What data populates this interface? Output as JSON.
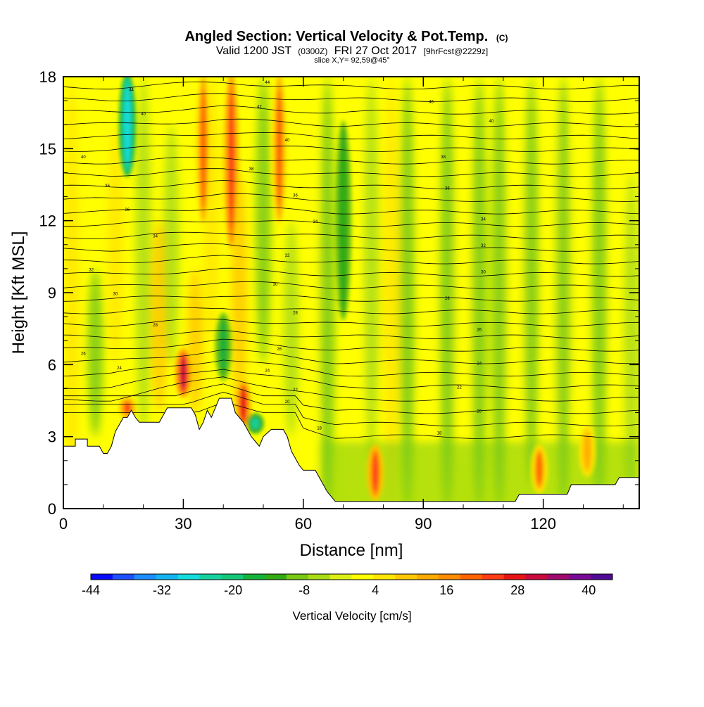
{
  "chart_data": {
    "type": "heatmap",
    "title": "Angled Section: Vertical Velocity & Pot.Temp.",
    "title_units": "(C)",
    "subtitle_parts": [
      {
        "text": "Valid 1200 JST",
        "small": false
      },
      {
        "text": "(0300Z)",
        "small": true
      },
      {
        "text": "FRI 27 Oct 2017",
        "small": false
      },
      {
        "text": "[9hrFcst@2229z]",
        "small": true
      }
    ],
    "slice_label": "slice X,Y= 92,59@45°",
    "xlabel": "Distance [nm]",
    "ylabel": "Height [Kft MSL]",
    "xlim": [
      0,
      144
    ],
    "ylim": [
      0,
      18
    ],
    "x_ticks": [
      "0",
      "30",
      "60",
      "90",
      "120"
    ],
    "y_ticks": [
      "0",
      "3",
      "6",
      "9",
      "12",
      "15",
      "18"
    ],
    "colorbar": {
      "label": "Vertical Velocity [cm/s]",
      "min": -44,
      "max": 44,
      "step": 4,
      "tick_labels": [
        "-44",
        "-32",
        "-20",
        "-8",
        "4",
        "16",
        "28",
        "40"
      ],
      "colors": [
        "#0a0aff",
        "#1e50ff",
        "#1e8cff",
        "#14b4f0",
        "#14dcdc",
        "#14d2a0",
        "#14c878",
        "#14b43c",
        "#32aa14",
        "#78c814",
        "#aadc14",
        "#dcf014",
        "#ffff00",
        "#ffe600",
        "#ffc800",
        "#ffaa00",
        "#ff8c00",
        "#ff6400",
        "#ff3c14",
        "#e61414",
        "#c80a3c",
        "#a00a6e",
        "#780a96",
        "#500a96"
      ]
    },
    "terrain_kft": [
      {
        "x": 0,
        "z": 2.6
      },
      {
        "x": 3,
        "z": 2.6
      },
      {
        "x": 3,
        "z": 2.9
      },
      {
        "x": 6,
        "z": 2.9
      },
      {
        "x": 6,
        "z": 2.6
      },
      {
        "x": 9,
        "z": 2.6
      },
      {
        "x": 10,
        "z": 2.3
      },
      {
        "x": 11,
        "z": 2.3
      },
      {
        "x": 12,
        "z": 2.6
      },
      {
        "x": 13,
        "z": 3.2
      },
      {
        "x": 14,
        "z": 3.5
      },
      {
        "x": 15,
        "z": 3.8
      },
      {
        "x": 16,
        "z": 3.8
      },
      {
        "x": 17,
        "z": 4.1
      },
      {
        "x": 18,
        "z": 3.8
      },
      {
        "x": 19,
        "z": 3.6
      },
      {
        "x": 24,
        "z": 3.6
      },
      {
        "x": 25,
        "z": 3.9
      },
      {
        "x": 26,
        "z": 4.2
      },
      {
        "x": 32,
        "z": 4.2
      },
      {
        "x": 33,
        "z": 3.9
      },
      {
        "x": 34,
        "z": 3.3
      },
      {
        "x": 35,
        "z": 3.6
      },
      {
        "x": 36,
        "z": 4.1
      },
      {
        "x": 37,
        "z": 3.8
      },
      {
        "x": 38,
        "z": 4.2
      },
      {
        "x": 39,
        "z": 4.6
      },
      {
        "x": 42,
        "z": 4.6
      },
      {
        "x": 43,
        "z": 4.0
      },
      {
        "x": 45,
        "z": 3.6
      },
      {
        "x": 46,
        "z": 3.3
      },
      {
        "x": 47,
        "z": 3.0
      },
      {
        "x": 48,
        "z": 2.8
      },
      {
        "x": 49,
        "z": 2.6
      },
      {
        "x": 50,
        "z": 3.0
      },
      {
        "x": 52,
        "z": 3.3
      },
      {
        "x": 55,
        "z": 3.3
      },
      {
        "x": 56,
        "z": 3.0
      },
      {
        "x": 57,
        "z": 2.4
      },
      {
        "x": 58,
        "z": 2.1
      },
      {
        "x": 59,
        "z": 1.8
      },
      {
        "x": 60,
        "z": 1.6
      },
      {
        "x": 63,
        "z": 1.6
      },
      {
        "x": 64,
        "z": 1.3
      },
      {
        "x": 65,
        "z": 1.0
      },
      {
        "x": 66,
        "z": 0.7
      },
      {
        "x": 67,
        "z": 0.5
      },
      {
        "x": 68,
        "z": 0.3
      },
      {
        "x": 113,
        "z": 0.3
      },
      {
        "x": 114,
        "z": 0.6
      },
      {
        "x": 126,
        "z": 0.6
      },
      {
        "x": 127,
        "z": 1.0
      },
      {
        "x": 138,
        "z": 1.0
      },
      {
        "x": 139,
        "z": 1.3
      },
      {
        "x": 144,
        "z": 1.3
      }
    ],
    "updrafts": [
      {
        "x": 16,
        "z_from": 3.9,
        "z_to": 4.5,
        "w": 30
      },
      {
        "x": 30,
        "z_from": 4.8,
        "z_to": 6.5,
        "w": 38
      },
      {
        "x": 35,
        "z_from": 12.0,
        "z_to": 18.0,
        "w": 24
      },
      {
        "x": 42,
        "z_from": 11.0,
        "z_to": 18.0,
        "w": 30
      },
      {
        "x": 45,
        "z_from": 3.5,
        "z_to": 5.2,
        "w": 34
      },
      {
        "x": 54,
        "z_from": 12.0,
        "z_to": 18.0,
        "w": 26
      },
      {
        "x": 78,
        "z_from": 0.5,
        "z_to": 2.5,
        "w": 30
      },
      {
        "x": 119,
        "z_from": 0.8,
        "z_to": 2.5,
        "w": 24
      },
      {
        "x": 131,
        "z_from": 1.5,
        "z_to": 3.3,
        "w": 18
      }
    ],
    "downdrafts": [
      {
        "x": 16,
        "z_from": 14.0,
        "z_to": 18.0,
        "w": -28
      },
      {
        "x": 70,
        "z_from": 8.0,
        "z_to": 16.0,
        "w": -12
      },
      {
        "x": 40,
        "z_from": 5.5,
        "z_to": 8.0,
        "w": -14
      },
      {
        "x": 48,
        "z_from": 3.3,
        "z_to": 3.8,
        "w": -22
      }
    ],
    "isentrope_labels": [
      {
        "x": 17,
        "z": 17.4,
        "text": "44"
      },
      {
        "x": 20,
        "z": 16.4,
        "text": "40"
      },
      {
        "x": 5,
        "z": 14.6,
        "text": "40"
      },
      {
        "x": 11,
        "z": 13.4,
        "text": "36"
      },
      {
        "x": 16,
        "z": 12.4,
        "text": "36"
      },
      {
        "x": 23,
        "z": 11.3,
        "text": "34"
      },
      {
        "x": 7,
        "z": 9.9,
        "text": "32"
      },
      {
        "x": 13,
        "z": 8.9,
        "text": "30"
      },
      {
        "x": 23,
        "z": 7.6,
        "text": "28"
      },
      {
        "x": 5,
        "z": 6.4,
        "text": "26"
      },
      {
        "x": 14,
        "z": 5.8,
        "text": "24"
      },
      {
        "x": 51,
        "z": 17.7,
        "text": "44"
      },
      {
        "x": 49,
        "z": 16.7,
        "text": "42"
      },
      {
        "x": 56,
        "z": 15.3,
        "text": "40"
      },
      {
        "x": 47,
        "z": 14.1,
        "text": "38"
      },
      {
        "x": 58,
        "z": 13.0,
        "text": "36"
      },
      {
        "x": 63,
        "z": 11.9,
        "text": "34"
      },
      {
        "x": 56,
        "z": 10.5,
        "text": "32"
      },
      {
        "x": 53,
        "z": 9.3,
        "text": "30"
      },
      {
        "x": 58,
        "z": 8.1,
        "text": "28"
      },
      {
        "x": 54,
        "z": 6.6,
        "text": "26"
      },
      {
        "x": 51,
        "z": 5.7,
        "text": "24"
      },
      {
        "x": 58,
        "z": 4.9,
        "text": "22"
      },
      {
        "x": 56,
        "z": 4.4,
        "text": "20"
      },
      {
        "x": 64,
        "z": 3.3,
        "text": "18"
      },
      {
        "x": 92,
        "z": 16.9,
        "text": "46"
      },
      {
        "x": 107,
        "z": 16.1,
        "text": "40"
      },
      {
        "x": 95,
        "z": 14.6,
        "text": "38"
      },
      {
        "x": 96,
        "z": 13.3,
        "text": "36"
      },
      {
        "x": 105,
        "z": 12.0,
        "text": "34"
      },
      {
        "x": 105,
        "z": 10.9,
        "text": "32"
      },
      {
        "x": 105,
        "z": 9.8,
        "text": "30"
      },
      {
        "x": 96,
        "z": 8.7,
        "text": "28"
      },
      {
        "x": 104,
        "z": 7.4,
        "text": "26"
      },
      {
        "x": 104,
        "z": 6.0,
        "text": "24"
      },
      {
        "x": 99,
        "z": 5.0,
        "text": "22"
      },
      {
        "x": 104,
        "z": 4.0,
        "text": "20"
      },
      {
        "x": 94,
        "z": 3.1,
        "text": "18"
      }
    ]
  }
}
